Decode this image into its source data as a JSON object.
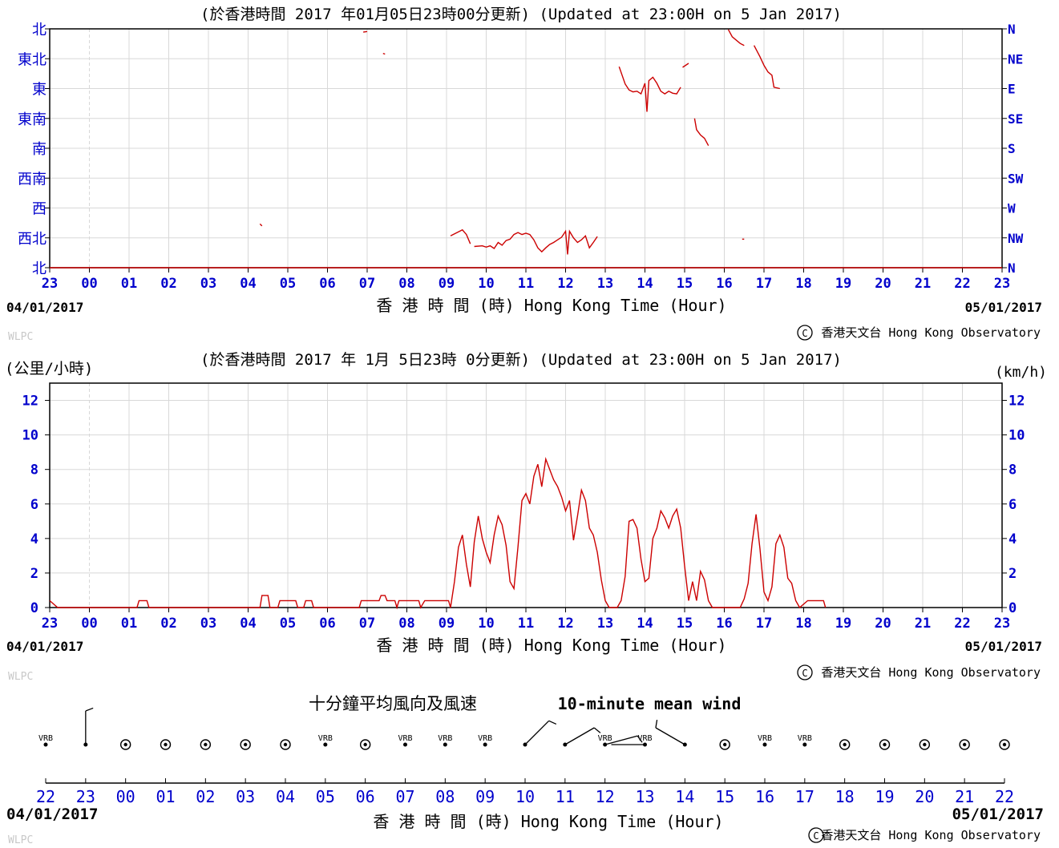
{
  "chart_data": [
    {
      "type": "line",
      "title": "(於香港時間 2017 年01月05日23時00分更新) (Updated at 23:00H on 5 Jan 2017)",
      "ylabel_left": "",
      "ylabel_right": "",
      "xlabel": "香 港 時 間 (時)  Hong Kong Time (Hour)",
      "date_start": "04/01/2017",
      "date_end": "05/01/2017",
      "x_ticks": [
        "23",
        "00",
        "01",
        "02",
        "03",
        "04",
        "05",
        "06",
        "07",
        "08",
        "09",
        "10",
        "11",
        "12",
        "13",
        "14",
        "15",
        "16",
        "17",
        "18",
        "19",
        "20",
        "21",
        "22",
        "23"
      ],
      "y_ticks_left": [
        "北",
        "西北",
        "西",
        "西南",
        "南",
        "東南",
        "東",
        "東北",
        "北"
      ],
      "y_ticks_right": [
        "N",
        "NW",
        "W",
        "SW",
        "S",
        "SE",
        "E",
        "NE",
        "N"
      ],
      "ylim_degrees": [
        0,
        360
      ],
      "series": [
        {
          "color": "#cc0000",
          "segments": [
            [
              [
                0.0,
                0
              ],
              [
                24.0,
                0
              ]
            ],
            [
              [
                7.9,
                355
              ],
              [
                8.0,
                356
              ]
            ],
            [
              [
                8.4,
                323
              ],
              [
                8.45,
                322
              ]
            ],
            [
              [
                5.3,
                66
              ],
              [
                5.35,
                63
              ]
            ],
            [
              [
                10.1,
                48
              ],
              [
                10.3,
                54
              ],
              [
                10.4,
                57
              ],
              [
                10.5,
                50
              ],
              [
                10.6,
                36
              ]
            ],
            [
              [
                10.7,
                32
              ],
              [
                10.9,
                33
              ],
              [
                11.0,
                31
              ],
              [
                11.1,
                33
              ],
              [
                11.2,
                29
              ],
              [
                11.3,
                38
              ],
              [
                11.4,
                34
              ],
              [
                11.5,
                41
              ],
              [
                11.6,
                43
              ],
              [
                11.7,
                50
              ],
              [
                11.8,
                53
              ],
              [
                11.9,
                50
              ],
              [
                12.0,
                52
              ],
              [
                12.1,
                50
              ],
              [
                12.2,
                42
              ],
              [
                12.3,
                30
              ],
              [
                12.4,
                24
              ],
              [
                12.5,
                30
              ],
              [
                12.6,
                35
              ],
              [
                12.7,
                38
              ],
              [
                12.8,
                42
              ],
              [
                12.9,
                46
              ],
              [
                13.0,
                55
              ],
              [
                13.05,
                20
              ],
              [
                13.1,
                55
              ],
              [
                13.2,
                45
              ],
              [
                13.3,
                38
              ],
              [
                13.4,
                42
              ],
              [
                13.5,
                48
              ],
              [
                13.6,
                30
              ],
              [
                13.7,
                38
              ],
              [
                13.8,
                47
              ]
            ],
            [
              [
                14.35,
                303
              ],
              [
                14.5,
                277
              ],
              [
                14.6,
                268
              ],
              [
                14.7,
                265
              ],
              [
                14.8,
                266
              ],
              [
                14.9,
                262
              ],
              [
                15.0,
                278
              ],
              [
                15.05,
                235
              ],
              [
                15.1,
                282
              ],
              [
                15.2,
                287
              ],
              [
                15.3,
                278
              ],
              [
                15.4,
                266
              ],
              [
                15.5,
                262
              ],
              [
                15.6,
                266
              ],
              [
                15.7,
                263
              ],
              [
                15.8,
                262
              ],
              [
                15.9,
                272
              ]
            ],
            [
              [
                15.95,
                302
              ],
              [
                16.1,
                308
              ]
            ],
            [
              [
                16.25,
                225
              ],
              [
                16.3,
                208
              ],
              [
                16.4,
                200
              ],
              [
                16.5,
                195
              ],
              [
                16.6,
                184
              ]
            ],
            [
              [
                17.1,
                359
              ],
              [
                17.2,
                348
              ],
              [
                17.4,
                338
              ],
              [
                17.5,
                335
              ]
            ],
            [
              [
                17.75,
                335
              ],
              [
                17.9,
                318
              ],
              [
                18.0,
                305
              ],
              [
                18.1,
                295
              ],
              [
                18.2,
                290
              ],
              [
                18.25,
                272
              ],
              [
                18.4,
                270
              ]
            ],
            [
              [
                17.45,
                43
              ],
              [
                17.5,
                43
              ]
            ]
          ]
        }
      ],
      "credit": "香港天文台 Hong Kong Observatory",
      "watermark": "WLPC"
    },
    {
      "type": "line",
      "title": "(於香港時間 2017 年 1月 5日23時 0分更新) (Updated at 23:00H on 5 Jan 2017)",
      "ylabel_left": "(公里/小時)",
      "ylabel_right": "(km/h)",
      "xlabel": "香 港 時 間 (時)  Hong Kong Time (Hour)",
      "date_start": "04/01/2017",
      "date_end": "05/01/2017",
      "x_ticks": [
        "23",
        "00",
        "01",
        "02",
        "03",
        "04",
        "05",
        "06",
        "07",
        "08",
        "09",
        "10",
        "11",
        "12",
        "13",
        "14",
        "15",
        "16",
        "17",
        "18",
        "19",
        "20",
        "21",
        "22",
        "23"
      ],
      "y_ticks": [
        "0",
        "2",
        "4",
        "6",
        "8",
        "10",
        "12"
      ],
      "ylim": [
        0,
        13
      ],
      "series": [
        {
          "color": "#cc0000",
          "points": [
            [
              0.0,
              0.4
            ],
            [
              0.2,
              0
            ],
            [
              2.2,
              0
            ],
            [
              2.25,
              0.4
            ],
            [
              2.45,
              0.4
            ],
            [
              2.5,
              0
            ],
            [
              5.3,
              0
            ],
            [
              5.35,
              0.7
            ],
            [
              5.5,
              0.7
            ],
            [
              5.55,
              0
            ],
            [
              5.75,
              0
            ],
            [
              5.8,
              0.4
            ],
            [
              6.2,
              0.4
            ],
            [
              6.25,
              0
            ],
            [
              6.4,
              0
            ],
            [
              6.45,
              0.4
            ],
            [
              6.6,
              0.4
            ],
            [
              6.65,
              0
            ],
            [
              7.8,
              0
            ],
            [
              7.85,
              0.4
            ],
            [
              8.3,
              0.4
            ],
            [
              8.35,
              0.7
            ],
            [
              8.45,
              0.7
            ],
            [
              8.5,
              0.4
            ],
            [
              8.7,
              0.4
            ],
            [
              8.75,
              0
            ],
            [
              8.8,
              0.4
            ],
            [
              9.3,
              0.4
            ],
            [
              9.35,
              0
            ],
            [
              9.45,
              0.4
            ],
            [
              10.05,
              0.4
            ],
            [
              10.1,
              0
            ],
            [
              10.2,
              1.5
            ],
            [
              10.3,
              3.5
            ],
            [
              10.4,
              4.2
            ],
            [
              10.5,
              2.5
            ],
            [
              10.6,
              1.2
            ],
            [
              10.7,
              3.8
            ],
            [
              10.8,
              5.3
            ],
            [
              10.9,
              4.0
            ],
            [
              11.0,
              3.2
            ],
            [
              11.1,
              2.6
            ],
            [
              11.2,
              4.2
            ],
            [
              11.3,
              5.3
            ],
            [
              11.4,
              4.8
            ],
            [
              11.5,
              3.6
            ],
            [
              11.6,
              1.5
            ],
            [
              11.7,
              1.1
            ],
            [
              11.8,
              3.5
            ],
            [
              11.9,
              6.2
            ],
            [
              12.0,
              6.6
            ],
            [
              12.1,
              6.0
            ],
            [
              12.2,
              7.6
            ],
            [
              12.3,
              8.3
            ],
            [
              12.4,
              7.0
            ],
            [
              12.5,
              8.6
            ],
            [
              12.6,
              8.0
            ],
            [
              12.7,
              7.4
            ],
            [
              12.8,
              7.0
            ],
            [
              12.9,
              6.4
            ],
            [
              13.0,
              5.6
            ],
            [
              13.1,
              6.2
            ],
            [
              13.2,
              3.9
            ],
            [
              13.3,
              5.3
            ],
            [
              13.4,
              6.8
            ],
            [
              13.5,
              6.2
            ],
            [
              13.6,
              4.6
            ],
            [
              13.7,
              4.2
            ],
            [
              13.8,
              3.2
            ],
            [
              13.9,
              1.6
            ],
            [
              14.0,
              0.4
            ],
            [
              14.1,
              0
            ],
            [
              14.3,
              0
            ],
            [
              14.4,
              0.4
            ],
            [
              14.5,
              1.8
            ],
            [
              14.6,
              5.0
            ],
            [
              14.7,
              5.1
            ],
            [
              14.8,
              4.6
            ],
            [
              14.9,
              2.8
            ],
            [
              15.0,
              1.5
            ],
            [
              15.1,
              1.7
            ],
            [
              15.2,
              4.0
            ],
            [
              15.3,
              4.6
            ],
            [
              15.4,
              5.6
            ],
            [
              15.5,
              5.2
            ],
            [
              15.6,
              4.6
            ],
            [
              15.7,
              5.3
            ],
            [
              15.8,
              5.7
            ],
            [
              15.9,
              4.6
            ],
            [
              16.0,
              2.4
            ],
            [
              16.1,
              0.4
            ],
            [
              16.2,
              1.5
            ],
            [
              16.3,
              0.4
            ],
            [
              16.4,
              2.1
            ],
            [
              16.5,
              1.6
            ],
            [
              16.6,
              0.4
            ],
            [
              16.7,
              0
            ],
            [
              17.4,
              0
            ],
            [
              17.5,
              0.5
            ],
            [
              17.6,
              1.4
            ],
            [
              17.7,
              3.7
            ],
            [
              17.8,
              5.4
            ],
            [
              17.9,
              3.4
            ],
            [
              18.0,
              0.9
            ],
            [
              18.1,
              0.4
            ],
            [
              18.2,
              1.2
            ],
            [
              18.3,
              3.7
            ],
            [
              18.4,
              4.2
            ],
            [
              18.5,
              3.5
            ],
            [
              18.6,
              1.7
            ],
            [
              18.7,
              1.4
            ],
            [
              18.8,
              0.4
            ],
            [
              18.9,
              0
            ],
            [
              19.1,
              0.4
            ],
            [
              19.5,
              0.4
            ],
            [
              19.55,
              0
            ]
          ]
        }
      ],
      "credit": "香港天文台 Hong Kong Observatory",
      "watermark": "WLPC"
    }
  ],
  "wind_plot": {
    "title_zh": "十分鐘平均風向及風速",
    "title_en": "10-minute mean wind",
    "x_ticks": [
      "22",
      "23",
      "00",
      "01",
      "02",
      "03",
      "04",
      "05",
      "06",
      "07",
      "08",
      "09",
      "10",
      "11",
      "12",
      "13",
      "14",
      "15",
      "16",
      "17",
      "18",
      "19",
      "20",
      "21",
      "22"
    ],
    "date_start": "04/01/2017",
    "date_end": "05/01/2017",
    "xlabel": "香 港 時 間 (時)  Hong Kong Time (Hour)",
    "credit": "香港天文台 Hong Kong Observatory",
    "watermark": "WLPC",
    "vrb_label": "VRB",
    "observations": [
      {
        "hour": "22",
        "kind": "vrb"
      },
      {
        "hour": "23",
        "kind": "barb",
        "direction_deg": 0,
        "barb_count": 1
      },
      {
        "hour": "00",
        "kind": "calm"
      },
      {
        "hour": "01",
        "kind": "calm"
      },
      {
        "hour": "02",
        "kind": "calm"
      },
      {
        "hour": "03",
        "kind": "calm"
      },
      {
        "hour": "04",
        "kind": "calm"
      },
      {
        "hour": "05",
        "kind": "vrb"
      },
      {
        "hour": "06",
        "kind": "calm"
      },
      {
        "hour": "07",
        "kind": "vrb"
      },
      {
        "hour": "08",
        "kind": "vrb"
      },
      {
        "hour": "09",
        "kind": "vrb"
      },
      {
        "hour": "10",
        "kind": "barb",
        "direction_deg": 45,
        "barb_count": 1
      },
      {
        "hour": "11",
        "kind": "barb",
        "direction_deg": 60,
        "barb_count": 1
      },
      {
        "hour": "12",
        "kind": "barb_vrb",
        "direction_deg": 75,
        "barb_count": 1
      },
      {
        "hour": "13",
        "kind": "barb_vrb",
        "direction_deg": 270,
        "barb_count": 0
      },
      {
        "hour": "14",
        "kind": "barb",
        "direction_deg": 300,
        "barb_count": 1
      },
      {
        "hour": "15",
        "kind": "calm"
      },
      {
        "hour": "16",
        "kind": "vrb"
      },
      {
        "hour": "17",
        "kind": "vrb"
      },
      {
        "hour": "18",
        "kind": "calm"
      },
      {
        "hour": "19",
        "kind": "calm"
      },
      {
        "hour": "20",
        "kind": "calm"
      },
      {
        "hour": "21",
        "kind": "calm"
      },
      {
        "hour": "22",
        "kind": "calm"
      }
    ]
  },
  "colors": {
    "series": "#cc0000",
    "axis_tick_text": "#0000cc",
    "grid": "#d8d8d8",
    "black": "#000000",
    "watermark": "#c8c8c8"
  }
}
